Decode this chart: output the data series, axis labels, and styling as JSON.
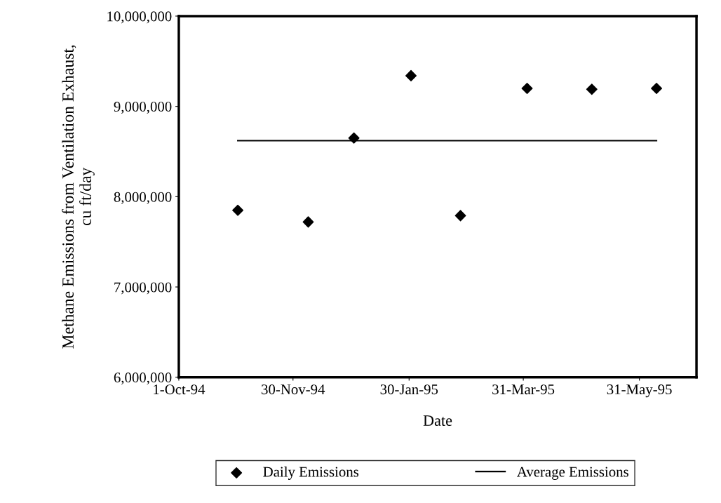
{
  "chart_data": {
    "type": "scatter",
    "xlabel": "Date",
    "ylabel": "Methane Emissions from Ventilation Exhaust,\ncu ft/day",
    "series": [
      {
        "name": "Daily Emissions",
        "color": "#000000",
        "marker": "diamond",
        "x": [
          "1994-11-01",
          "1994-12-08",
          "1995-01-01",
          "1995-01-31",
          "1995-02-26",
          "1995-04-02",
          "1995-05-06",
          "1995-06-09"
        ],
        "values": [
          7850000,
          7720000,
          8650000,
          9340000,
          7790000,
          9200000,
          9190000,
          9200000
        ]
      },
      {
        "name": "Average Emissions",
        "type": "line",
        "color": "#000000",
        "marker": "none",
        "line_style": "solid",
        "x": [
          "1994-11-01",
          "1995-06-09"
        ],
        "values": [
          8620000,
          8620000
        ]
      }
    ],
    "xlim": [
      "1994-10-01",
      "1995-06-30"
    ],
    "xticks": [
      {
        "value": "1994-10-01",
        "label": "1-Oct-94"
      },
      {
        "value": "1994-11-30",
        "label": "30-Nov-94"
      },
      {
        "value": "1995-01-30",
        "label": "30-Jan-95"
      },
      {
        "value": "1995-03-31",
        "label": "31-Mar-95"
      },
      {
        "value": "1995-05-31",
        "label": "31-May-95"
      }
    ],
    "ylim": [
      6000000,
      10000000
    ],
    "yticks": [
      {
        "value": 6000000,
        "label": "6,000,000"
      },
      {
        "value": 7000000,
        "label": "7,000,000"
      },
      {
        "value": 8000000,
        "label": "8,000,000"
      },
      {
        "value": 9000000,
        "label": "9,000,000"
      },
      {
        "value": 10000000,
        "label": "10,000,000"
      }
    ],
    "grid": false,
    "legend": "bottom"
  }
}
